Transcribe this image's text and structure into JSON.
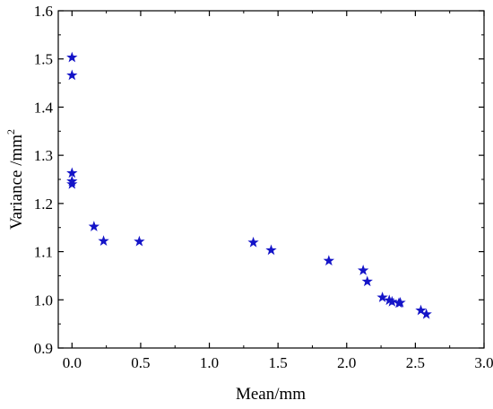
{
  "chart_data": {
    "type": "scatter",
    "xlabel": "Mean/mm",
    "ylabel": "Variance /mm",
    "ylabel_superscript": "2",
    "xlim": [
      -0.1,
      3.0
    ],
    "ylim": [
      0.9,
      1.6
    ],
    "xticks": [
      "0.0",
      "0.5",
      "1.0",
      "1.5",
      "2.0",
      "2.5",
      "3.0"
    ],
    "yticks": [
      "0.9",
      "1.0",
      "1.1",
      "1.2",
      "1.3",
      "1.4",
      "1.5",
      "1.6"
    ],
    "marker": "star",
    "marker_color": "#1414c8",
    "grid": false,
    "legend": "none",
    "series": [
      {
        "points": [
          {
            "x": 0.0,
            "y": 1.503
          },
          {
            "x": 0.0,
            "y": 1.466
          },
          {
            "x": 0.0,
            "y": 1.263
          },
          {
            "x": 0.0,
            "y": 1.246
          },
          {
            "x": 0.0,
            "y": 1.24
          },
          {
            "x": 0.16,
            "y": 1.152
          },
          {
            "x": 0.23,
            "y": 1.122
          },
          {
            "x": 0.49,
            "y": 1.121
          },
          {
            "x": 1.32,
            "y": 1.119
          },
          {
            "x": 1.45,
            "y": 1.103
          },
          {
            "x": 1.87,
            "y": 1.081
          },
          {
            "x": 2.12,
            "y": 1.061
          },
          {
            "x": 2.15,
            "y": 1.038
          },
          {
            "x": 2.26,
            "y": 1.005
          },
          {
            "x": 2.31,
            "y": 0.999
          },
          {
            "x": 2.33,
            "y": 0.996
          },
          {
            "x": 2.38,
            "y": 0.993
          },
          {
            "x": 2.39,
            "y": 0.994
          },
          {
            "x": 2.54,
            "y": 0.978
          },
          {
            "x": 2.58,
            "y": 0.97
          }
        ]
      }
    ]
  }
}
